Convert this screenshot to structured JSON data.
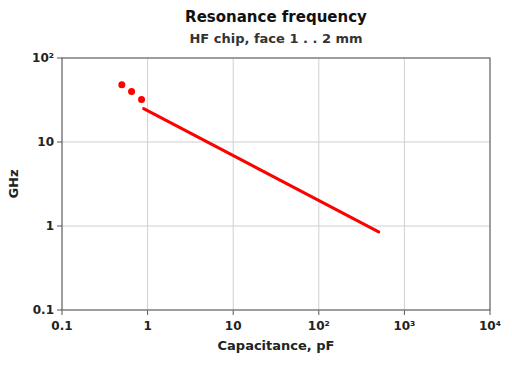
{
  "chart_data": {
    "type": "line",
    "title": "Resonance frequency",
    "subtitle": "HF chip, face 1 . . 2 mm",
    "x_label": "Capacitance, pF",
    "y_label": "GHz",
    "log": true,
    "grid": true,
    "xlim": [
      0.1,
      10000
    ],
    "ylim": [
      0.1,
      100
    ],
    "xticks": [
      0.1,
      1,
      10,
      {
        "value": 100,
        "label": "10²"
      },
      {
        "value": 1000,
        "label": "10³"
      },
      {
        "value": 10000,
        "label": "10⁴"
      }
    ],
    "yticks": [
      0.1,
      1,
      10,
      {
        "value": 100,
        "label": "10²"
      }
    ],
    "series": [
      {
        "type": "line",
        "color": "#ff0000",
        "x": [
          0.9,
          500
        ],
        "values": [
          25,
          0.85
        ]
      },
      {
        "type": "scatter",
        "color": "#ff0000",
        "x": [
          0.5,
          0.65,
          0.85
        ],
        "values": [
          48,
          40,
          32
        ]
      }
    ]
  }
}
